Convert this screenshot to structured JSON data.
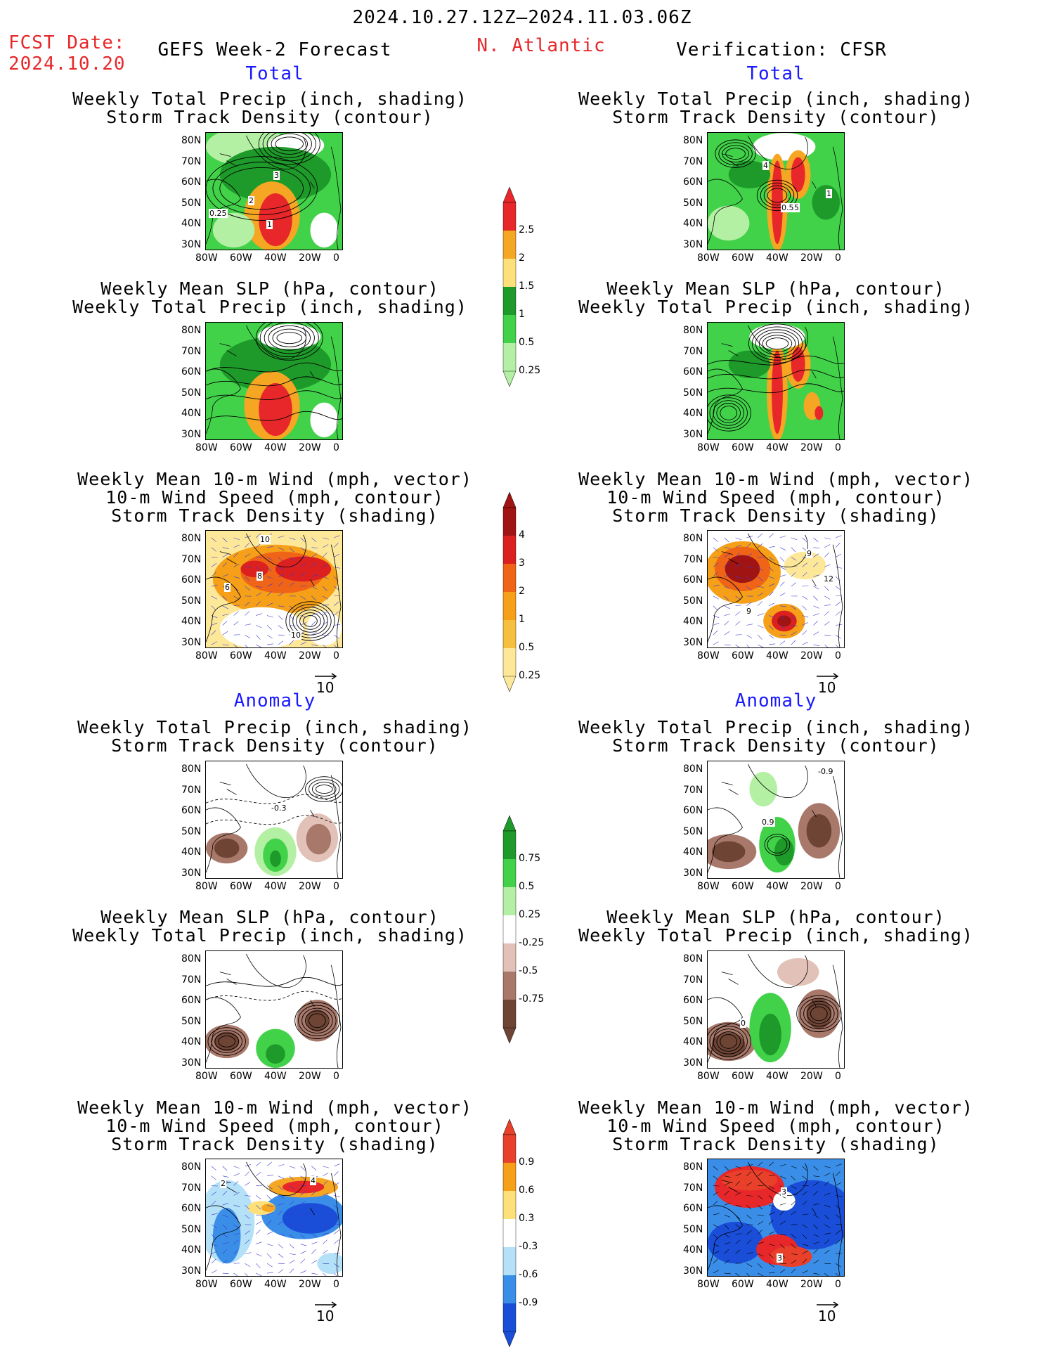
{
  "header": {
    "date_range": "2024.10.27.12Z–2024.11.03.06Z",
    "fcst_label": "FCST Date:",
    "fcst_date": "2024.10.20",
    "left_title": "GEFS Week-2 Forecast",
    "region": "N. Atlantic",
    "right_title": "Verification: CFSR"
  },
  "sections": {
    "total": "Total",
    "anomaly": "Anomaly"
  },
  "titles": {
    "precip_track": [
      "Weekly Total Precip (inch, shading)",
      "Storm Track Density (contour)"
    ],
    "slp_precip": [
      "Weekly Mean SLP (hPa, contour)",
      "Weekly Total Precip (inch, shading)"
    ],
    "wind_track": [
      "Weekly Mean 10-m Wind (mph, vector)",
      "10-m Wind Speed (mph, contour)",
      "Storm Track Density (shading)"
    ]
  },
  "axes": {
    "lat_ticks": [
      "80N",
      "70N",
      "60N",
      "50N",
      "40N",
      "30N"
    ],
    "lon_ticks": [
      "80W",
      "60W",
      "40W",
      "20W",
      "0"
    ]
  },
  "vector_ref": "10",
  "colorbars": {
    "total_precip": {
      "labels": [
        "2.5",
        "2",
        "1.5",
        "1",
        "0.5",
        "0.25"
      ],
      "colors": [
        "#e8272a",
        "#f5a623",
        "#fde07a",
        "#1e9a2a",
        "#42d24a",
        "#b4f0a4"
      ]
    },
    "total_track": {
      "labels": [
        "4",
        "3",
        "2",
        "1",
        "0.5",
        "0.25"
      ],
      "colors": [
        "#a01414",
        "#dc2020",
        "#f06418",
        "#f5a018",
        "#f5c040",
        "#fde89a"
      ]
    },
    "anom_precip": {
      "labels": [
        "0.75",
        "0.5",
        "0.25",
        "-0.25",
        "-0.5",
        "-0.75"
      ],
      "colors": [
        "#1e9a2a",
        "#42d24a",
        "#b4f0a4",
        "#ffffff",
        "#e2c2b8",
        "#a8786a",
        "#6e4434"
      ]
    },
    "anom_track": {
      "labels": [
        "0.9",
        "0.6",
        "0.3",
        "-0.3",
        "-0.6",
        "-0.9"
      ],
      "colors": [
        "#e8402a",
        "#f5a018",
        "#fde07a",
        "#ffffff",
        "#b4e0f8",
        "#3a8ee8",
        "#1a4ed8"
      ]
    }
  },
  "contour_labels": {
    "f_total_1": [
      "3",
      "2",
      "0.25",
      "1"
    ],
    "v_total_1": [
      "4",
      "0.5",
      "5",
      "1"
    ],
    "f_total_3": [
      "10",
      "8",
      "6",
      "10"
    ],
    "v_total_3": [
      "9",
      "12",
      "9",
      "9"
    ],
    "f_anom_1": [
      "-0.3"
    ],
    "v_anom_1": [
      "-0.9",
      "0.9"
    ],
    "v_anom_2": [
      "0"
    ],
    "f_anom_3": [
      "2",
      "4"
    ],
    "v_anom_3": [
      "3",
      "3"
    ]
  }
}
